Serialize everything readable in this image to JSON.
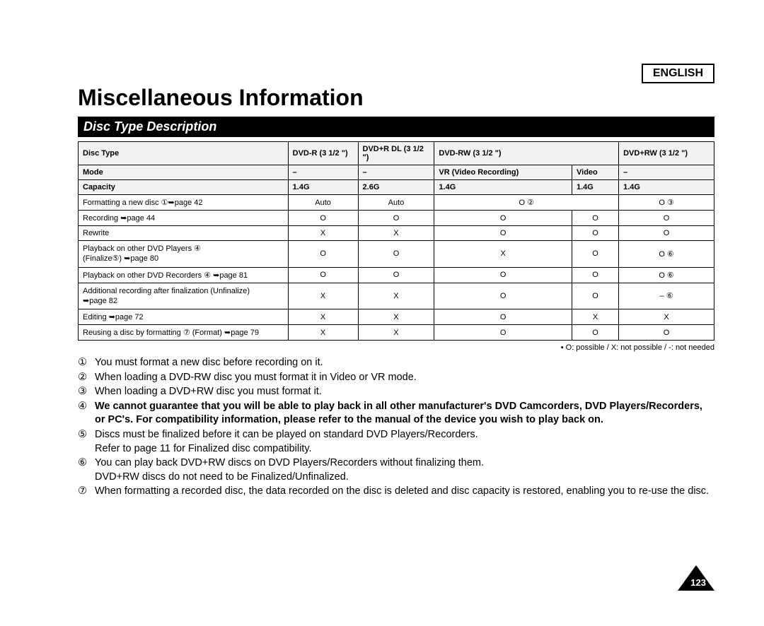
{
  "language_label": "ENGLISH",
  "main_title": "Miscellaneous Information",
  "section_title": "Disc Type Description",
  "table": {
    "columns": [
      {
        "key": "label",
        "width": "33%",
        "align": "left"
      },
      {
        "key": "c1",
        "width": "11%",
        "align": "center"
      },
      {
        "key": "c2",
        "width": "12%",
        "align": "center"
      },
      {
        "key": "c3",
        "width": "16%",
        "align": "center"
      },
      {
        "key": "c4",
        "width": "13%",
        "align": "center"
      },
      {
        "key": "c5",
        "width": "15%",
        "align": "center"
      }
    ],
    "header_bg": "#f2f2f2",
    "border_color": "#000000",
    "font_size": 11,
    "rows": [
      {
        "type": "header",
        "cells": [
          {
            "text": "Disc Type",
            "bold": true
          },
          {
            "text": "DVD-R (3 1/2 \")"
          },
          {
            "text": "DVD+R DL (3 1/2 \")"
          },
          {
            "text": "DVD-RW (3 1/2 \")",
            "colspan": 2
          },
          {
            "text": "DVD+RW (3 1/2 \")"
          }
        ]
      },
      {
        "type": "header",
        "cells": [
          {
            "text": "Mode",
            "bold": true
          },
          {
            "text": "–"
          },
          {
            "text": "–"
          },
          {
            "text": "VR (Video Recording)"
          },
          {
            "text": "Video"
          },
          {
            "text": "–"
          }
        ]
      },
      {
        "type": "header",
        "cells": [
          {
            "text": "Capacity",
            "bold": true
          },
          {
            "text": "1.4G"
          },
          {
            "text": "2.6G"
          },
          {
            "text": "1.4G"
          },
          {
            "text": "1.4G"
          },
          {
            "text": "1.4G"
          }
        ]
      },
      {
        "type": "body",
        "cells": [
          {
            "text": "Formatting a new disc ①➥page 42"
          },
          {
            "text": "Auto"
          },
          {
            "text": "Auto"
          },
          {
            "text": "O ②",
            "colspan": 2
          },
          {
            "text": "O ③"
          }
        ]
      },
      {
        "type": "body",
        "cells": [
          {
            "text": "Recording ➥page 44"
          },
          {
            "text": "O"
          },
          {
            "text": "O"
          },
          {
            "text": "O"
          },
          {
            "text": "O"
          },
          {
            "text": "O"
          }
        ]
      },
      {
        "type": "body",
        "cells": [
          {
            "text": "Rewrite"
          },
          {
            "text": "X"
          },
          {
            "text": "X"
          },
          {
            "text": "O"
          },
          {
            "text": "O"
          },
          {
            "text": "O"
          }
        ]
      },
      {
        "type": "body",
        "twoline": true,
        "cells": [
          {
            "text": "Playback on other DVD Players ④\n(Finalize⑤) ➥page 80"
          },
          {
            "text": "O"
          },
          {
            "text": "O"
          },
          {
            "text": "X"
          },
          {
            "text": "O"
          },
          {
            "text": "O ⑥"
          }
        ]
      },
      {
        "type": "body",
        "cells": [
          {
            "text": "Playback on other DVD Recorders ④ ➥page 81"
          },
          {
            "text": "O"
          },
          {
            "text": "O"
          },
          {
            "text": "O"
          },
          {
            "text": "O"
          },
          {
            "text": "O ⑥"
          }
        ]
      },
      {
        "type": "body",
        "twoline": true,
        "cells": [
          {
            "text": "Additional recording after finalization (Unfinalize)\n➥page 82"
          },
          {
            "text": "X"
          },
          {
            "text": "X"
          },
          {
            "text": "O"
          },
          {
            "text": "O"
          },
          {
            "text": "– ⑥"
          }
        ]
      },
      {
        "type": "body",
        "cells": [
          {
            "text": "Editing ➥page 72"
          },
          {
            "text": "X"
          },
          {
            "text": "X"
          },
          {
            "text": "O"
          },
          {
            "text": "X"
          },
          {
            "text": "X"
          }
        ]
      },
      {
        "type": "body",
        "cells": [
          {
            "text": "Reusing a disc by formatting ⑦ (Format) ➥page 79"
          },
          {
            "text": "X"
          },
          {
            "text": "X"
          },
          {
            "text": "O"
          },
          {
            "text": "O"
          },
          {
            "text": "O"
          }
        ]
      }
    ]
  },
  "legend": "▪ O: possible / X: not possible / -: not needed",
  "notes": [
    {
      "num": "①",
      "text": "You must format a new disc before recording on it."
    },
    {
      "num": "②",
      "text": "When loading a DVD-RW disc you must format it in Video or VR mode."
    },
    {
      "num": "③",
      "text": "When loading a DVD+RW disc you must format it."
    },
    {
      "num": "④",
      "bold": true,
      "text": "We cannot guarantee that you will be able to play back in all other manufacturer's DVD Camcorders, DVD Players/Recorders, or PC's. For compatibility information, please refer to the manual of the device you wish to play back on."
    },
    {
      "num": "⑤",
      "text": "Discs must be finalized before it can be played on standard DVD Players/Recorders.\nRefer to page 11 for Finalized disc compatibility."
    },
    {
      "num": "⑥",
      "text": "You can play back DVD+RW discs on DVD Players/Recorders without finalizing them.\nDVD+RW discs do not need to be Finalized/Unfinalized."
    },
    {
      "num": "⑦",
      "text": "When formatting a recorded disc, the data recorded on the disc is deleted and disc capacity is restored, enabling you to re-use the disc."
    }
  ],
  "page_number": "123"
}
